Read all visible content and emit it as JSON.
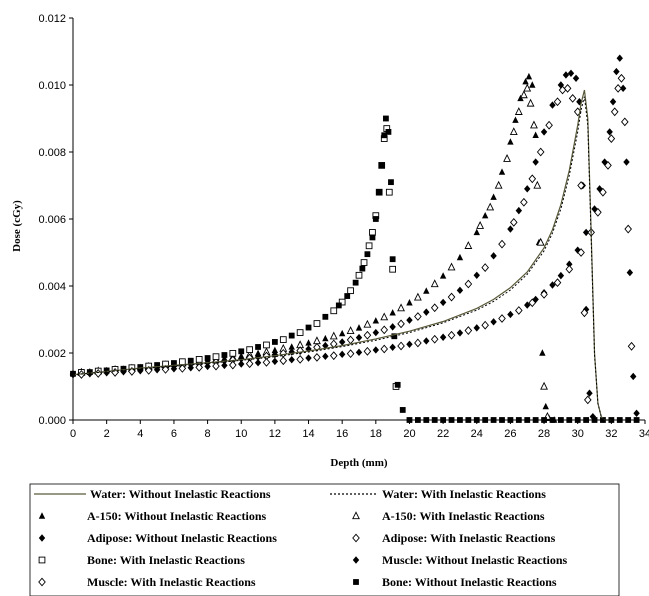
{
  "chart_data": {
    "type": "scatter",
    "title": "",
    "xlabel": "Depth (mm)",
    "ylabel": "Dose (cGy)",
    "xlim": [
      0,
      34
    ],
    "ylim": [
      0,
      0.012
    ],
    "x_ticks": [
      "0",
      "2",
      "4",
      "6",
      "8",
      "10",
      "12",
      "14",
      "16",
      "18",
      "20",
      "22",
      "24",
      "26",
      "28",
      "30",
      "32",
      "34"
    ],
    "y_ticks": [
      "0.000",
      "0.002",
      "0.004",
      "0.006",
      "0.008",
      "0.010",
      "0.012"
    ],
    "legend_position": "bottom",
    "series": [
      {
        "name": "Water: Without Inelastic Reactions",
        "marker": "line-solid",
        "color": "#5a5a3a",
        "x": [
          0,
          2,
          4,
          6,
          8,
          10,
          12,
          14,
          16,
          18,
          20,
          22,
          24,
          25,
          26,
          27,
          28,
          28.5,
          29,
          29.5,
          30,
          30.2,
          30.4,
          30.6,
          30.8,
          31,
          31.2,
          31.4,
          31.6,
          32
        ],
        "y": [
          0.00135,
          0.00145,
          0.00155,
          0.00163,
          0.00171,
          0.0018,
          0.00192,
          0.00206,
          0.00222,
          0.00242,
          0.00265,
          0.00294,
          0.00333,
          0.0036,
          0.00395,
          0.00442,
          0.00514,
          0.00568,
          0.00643,
          0.00745,
          0.0088,
          0.00945,
          0.00985,
          0.009,
          0.0056,
          0.002,
          0.0005,
          0.0001,
          0.0,
          0.0
        ]
      },
      {
        "name": "Water: With Inelastic Reactions",
        "marker": "line-dotted",
        "color": "#000000",
        "x": [
          0,
          2,
          4,
          6,
          8,
          10,
          12,
          14,
          16,
          18,
          20,
          22,
          24,
          25,
          26,
          27,
          28,
          28.5,
          29,
          29.5,
          30,
          30.2,
          30.4,
          30.6,
          30.8,
          31,
          31.2,
          31.4,
          31.6,
          32
        ],
        "y": [
          0.00135,
          0.00144,
          0.00153,
          0.00161,
          0.00169,
          0.00178,
          0.00189,
          0.00203,
          0.00219,
          0.00238,
          0.00261,
          0.0029,
          0.00328,
          0.00354,
          0.00388,
          0.00435,
          0.00505,
          0.00558,
          0.0063,
          0.0073,
          0.0086,
          0.00925,
          0.00965,
          0.0088,
          0.00545,
          0.00195,
          0.0005,
          0.0001,
          0.0,
          0.0
        ]
      },
      {
        "name": "A-150: Without Inelastic Reactions",
        "marker": "triangle-filled",
        "color": "#000000",
        "x": [
          0,
          1,
          2,
          3,
          4,
          5,
          6,
          7,
          8,
          9,
          10,
          11,
          12,
          13,
          14,
          15,
          16,
          17,
          18,
          19,
          20,
          21,
          22,
          23,
          24,
          24.5,
          25,
          25.5,
          26,
          26.3,
          26.6,
          26.9,
          27.1,
          27.3,
          27.5,
          27.7,
          27.9,
          28.1,
          28.3,
          28.6
        ],
        "y": [
          0.0014,
          0.00144,
          0.00148,
          0.00152,
          0.00157,
          0.00162,
          0.00167,
          0.00172,
          0.00178,
          0.00184,
          0.00191,
          0.00199,
          0.00208,
          0.00218,
          0.0023,
          0.00243,
          0.00258,
          0.00275,
          0.00296,
          0.0032,
          0.0035,
          0.00385,
          0.0043,
          0.00485,
          0.0056,
          0.0061,
          0.00665,
          0.0074,
          0.0083,
          0.00895,
          0.0096,
          0.0101,
          0.01025,
          0.01,
          0.0085,
          0.0053,
          0.002,
          0.0004,
          5e-05,
          0.0
        ]
      },
      {
        "name": "A-150: With Inelastic Reactions",
        "marker": "triangle-open",
        "color": "#000000",
        "x": [
          0.5,
          1.5,
          2.5,
          3.5,
          4.5,
          5.5,
          6.5,
          7.5,
          8.5,
          9.5,
          10.5,
          11.5,
          12.5,
          13.5,
          14.5,
          15.5,
          16.5,
          17.5,
          18.5,
          19.5,
          20.5,
          21.5,
          22.5,
          23.5,
          24.2,
          24.8,
          25.3,
          25.8,
          26.2,
          26.5,
          26.8,
          27.0,
          27.2,
          27.4,
          27.6,
          27.8,
          28.0,
          28.2
        ],
        "y": [
          0.00142,
          0.00146,
          0.0015,
          0.00154,
          0.00159,
          0.00164,
          0.00169,
          0.00175,
          0.00181,
          0.00187,
          0.00195,
          0.00203,
          0.00213,
          0.00224,
          0.00236,
          0.0025,
          0.00266,
          0.00285,
          0.00307,
          0.00334,
          0.00366,
          0.00406,
          0.00456,
          0.0052,
          0.0058,
          0.00635,
          0.007,
          0.0078,
          0.0086,
          0.0092,
          0.0097,
          0.0099,
          0.00945,
          0.0088,
          0.007,
          0.0053,
          0.001,
          0.0001
        ]
      },
      {
        "name": "Adipose: Without Inelastic Reactions",
        "marker": "diamond-filled",
        "color": "#000000",
        "x": [
          0,
          1,
          2,
          3,
          4,
          5,
          6,
          7,
          8,
          9,
          10,
          11,
          12,
          13,
          14,
          15,
          16,
          17,
          18,
          19,
          20,
          21,
          22,
          23,
          24,
          25,
          26,
          26.5,
          27,
          27.5,
          28,
          28.5,
          29,
          29.3,
          29.6,
          29.9,
          30.1,
          30.3,
          30.5,
          30.7,
          30.9
        ],
        "y": [
          0.00138,
          0.00141,
          0.00145,
          0.00149,
          0.00153,
          0.00157,
          0.00161,
          0.00166,
          0.00171,
          0.00176,
          0.00182,
          0.00188,
          0.00195,
          0.00203,
          0.00212,
          0.00222,
          0.00233,
          0.00246,
          0.00261,
          0.00278,
          0.00298,
          0.00322,
          0.00351,
          0.00387,
          0.00432,
          0.0049,
          0.0057,
          0.00625,
          0.0069,
          0.0077,
          0.0086,
          0.0094,
          0.01,
          0.0103,
          0.01035,
          0.0102,
          0.0095,
          0.007,
          0.0033,
          0.0008,
          0.0001
        ]
      },
      {
        "name": "Adipose: With Inelastic Reactions",
        "marker": "diamond-open",
        "color": "#000000",
        "x": [
          0.5,
          1.5,
          2.5,
          3.5,
          4.5,
          5.5,
          6.5,
          7.5,
          8.5,
          9.5,
          10.5,
          11.5,
          12.5,
          13.5,
          14.5,
          15.5,
          16.5,
          17.5,
          18.5,
          19.5,
          20.5,
          21.5,
          22.5,
          23.5,
          24.5,
          25.5,
          26.2,
          26.8,
          27.3,
          27.8,
          28.3,
          28.8,
          29.1,
          29.4,
          29.7,
          30.0,
          30.2,
          30.4,
          30.6
        ],
        "y": [
          0.0014,
          0.00143,
          0.00147,
          0.00151,
          0.00155,
          0.00159,
          0.00164,
          0.00168,
          0.00173,
          0.00179,
          0.00185,
          0.00191,
          0.00199,
          0.00207,
          0.00217,
          0.00227,
          0.00239,
          0.00253,
          0.00269,
          0.00287,
          0.00309,
          0.00335,
          0.00367,
          0.00406,
          0.00455,
          0.00525,
          0.0059,
          0.0065,
          0.0072,
          0.008,
          0.0088,
          0.0095,
          0.00985,
          0.0099,
          0.0096,
          0.0092,
          0.007,
          0.0032,
          0.0006
        ]
      },
      {
        "name": "Bone: With Inelastic Reactions",
        "marker": "square-open",
        "color": "#000000",
        "x": [
          0.5,
          1.5,
          2.5,
          3.5,
          4.5,
          5.5,
          6.5,
          7.5,
          8.5,
          9.5,
          10.5,
          11.5,
          12.5,
          13.5,
          14.5,
          15.5,
          16,
          16.5,
          17,
          17.3,
          17.6,
          17.8,
          18.0,
          18.2,
          18.35,
          18.5,
          18.65,
          18.8,
          19.0,
          19.2
        ],
        "y": [
          0.00142,
          0.00146,
          0.00151,
          0.00156,
          0.00161,
          0.00167,
          0.00174,
          0.00181,
          0.00189,
          0.00199,
          0.0021,
          0.00224,
          0.0024,
          0.00261,
          0.00288,
          0.00326,
          0.00352,
          0.00386,
          0.00432,
          0.0047,
          0.0052,
          0.0056,
          0.0061,
          0.0068,
          0.0076,
          0.0084,
          0.0087,
          0.0068,
          0.0045,
          0.001
        ]
      },
      {
        "name": "Muscle: Without Inelastic Reactions",
        "marker": "diamond-filled",
        "color": "#000000",
        "x": [
          0,
          1,
          2,
          3,
          4,
          5,
          6,
          7,
          8,
          9,
          10,
          11,
          12,
          13,
          14,
          15,
          16,
          17,
          18,
          19,
          20,
          21,
          22,
          23,
          24,
          25,
          26,
          27,
          27.5,
          28,
          28.5,
          29,
          29.5,
          30,
          30.5,
          31,
          31.3,
          31.6,
          31.9,
          32.1,
          32.3,
          32.5,
          32.7,
          32.9,
          33.1,
          33.3,
          33.5
        ],
        "y": [
          0.00135,
          0.00138,
          0.00141,
          0.00144,
          0.00147,
          0.0015,
          0.00153,
          0.00156,
          0.0016,
          0.00163,
          0.00167,
          0.00171,
          0.00175,
          0.0018,
          0.00185,
          0.0019,
          0.00196,
          0.00202,
          0.00209,
          0.00217,
          0.00226,
          0.00236,
          0.00247,
          0.0026,
          0.00275,
          0.00293,
          0.00315,
          0.00343,
          0.0036,
          0.0038,
          0.00403,
          0.00431,
          0.00465,
          0.00507,
          0.0056,
          0.0063,
          0.0069,
          0.0077,
          0.0086,
          0.0095,
          0.0104,
          0.0108,
          0.0099,
          0.0077,
          0.0044,
          0.0013,
          0.0002
        ]
      },
      {
        "name": "Muscle: With Inelastic Reactions",
        "marker": "diamond-open",
        "color": "#000000",
        "x": [
          0.5,
          1.5,
          2.5,
          3.5,
          4.5,
          5.5,
          6.5,
          7.5,
          8.5,
          9.5,
          10.5,
          11.5,
          12.5,
          13.5,
          14.5,
          15.5,
          16.5,
          17.5,
          18.5,
          19.5,
          20.5,
          21.5,
          22.5,
          23.5,
          24.5,
          25.5,
          26.5,
          27.3,
          28.0,
          28.8,
          29.5,
          30.2,
          30.8,
          31.2,
          31.5,
          31.8,
          32.0,
          32.2,
          32.4,
          32.6,
          32.8,
          33.0,
          33.2
        ],
        "y": [
          0.00136,
          0.00139,
          0.00142,
          0.00145,
          0.00148,
          0.00151,
          0.00154,
          0.00157,
          0.00161,
          0.00164,
          0.00168,
          0.00172,
          0.00177,
          0.00181,
          0.00187,
          0.00192,
          0.00198,
          0.00205,
          0.00212,
          0.00221,
          0.0023,
          0.00241,
          0.00253,
          0.00267,
          0.00283,
          0.00303,
          0.00327,
          0.0035,
          0.00375,
          0.0041,
          0.0045,
          0.005,
          0.0056,
          0.0062,
          0.0068,
          0.0076,
          0.0084,
          0.0092,
          0.0099,
          0.0102,
          0.0089,
          0.0057,
          0.0022
        ]
      },
      {
        "name": "Bone: Without Inelastic Reactions",
        "marker": "square-filled",
        "color": "#000000",
        "x": [
          0,
          1,
          2,
          3,
          4,
          5,
          6,
          7,
          8,
          9,
          10,
          11,
          12,
          13,
          14,
          15,
          15.8,
          16.3,
          16.8,
          17.2,
          17.5,
          17.8,
          18.0,
          18.2,
          18.35,
          18.5,
          18.6,
          18.75,
          18.9,
          19.0,
          19.1,
          19.3,
          19.6,
          20,
          20.5,
          21,
          21.5,
          22,
          22.5,
          23,
          23.5,
          24,
          24.5,
          25,
          25.5,
          26,
          26.5,
          27,
          27.5,
          28,
          28.5,
          29,
          29.5,
          30,
          30.5,
          31,
          31.5,
          32,
          32.5,
          33,
          33.5
        ],
        "y": [
          0.00138,
          0.00143,
          0.00148,
          0.00153,
          0.00158,
          0.00164,
          0.0017,
          0.00177,
          0.00185,
          0.00194,
          0.00205,
          0.00218,
          0.00233,
          0.00252,
          0.00276,
          0.00308,
          0.00342,
          0.0037,
          0.0041,
          0.00452,
          0.00495,
          0.00545,
          0.006,
          0.0068,
          0.0076,
          0.0085,
          0.009,
          0.0086,
          0.0071,
          0.0048,
          0.0025,
          0.00105,
          0.0003,
          0,
          0,
          0,
          0,
          0,
          0,
          0,
          0,
          0,
          0,
          0,
          0,
          0,
          0,
          0,
          0,
          0,
          0,
          0,
          0,
          0,
          0,
          0,
          0,
          0,
          0,
          0,
          0
        ]
      }
    ]
  }
}
